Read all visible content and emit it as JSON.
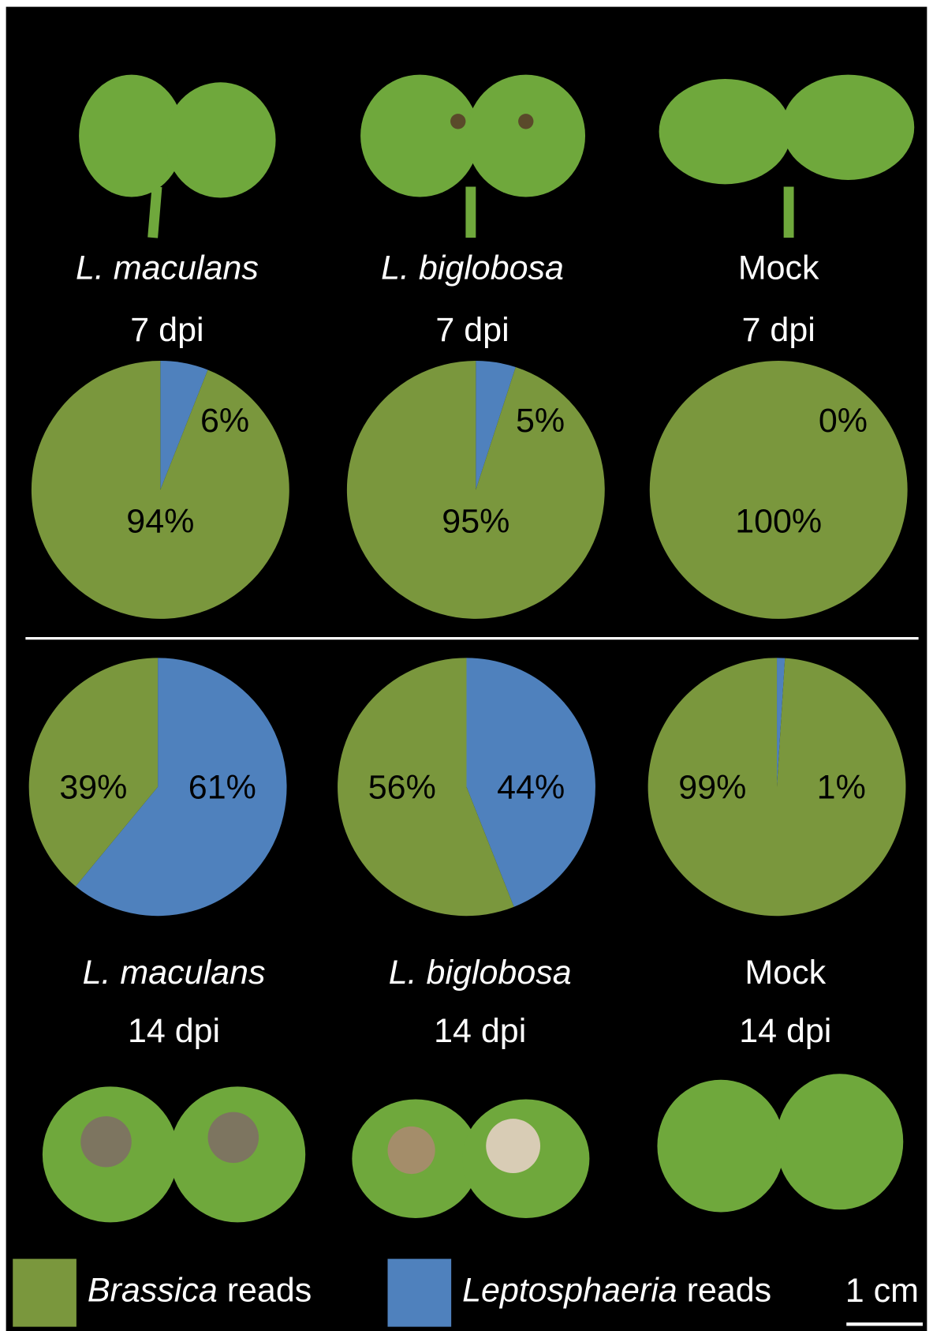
{
  "chart_data": [
    {
      "type": "pie",
      "title": "L. maculans",
      "subtitle": "7 dpi",
      "values": [
        94,
        6
      ],
      "value_labels": [
        "94%",
        "6%"
      ]
    },
    {
      "type": "pie",
      "title": "L. biglobosa",
      "subtitle": "7 dpi",
      "values": [
        95,
        5
      ],
      "value_labels": [
        "95%",
        "5%"
      ]
    },
    {
      "type": "pie",
      "title": "Mock",
      "subtitle": "7 dpi",
      "values": [
        100,
        0
      ],
      "value_labels": [
        "100%",
        "0%"
      ]
    },
    {
      "type": "pie",
      "title": "L. maculans",
      "subtitle": "14 dpi",
      "values": [
        39,
        61
      ],
      "value_labels": [
        "39%",
        "61%"
      ]
    },
    {
      "type": "pie",
      "title": "L. biglobosa",
      "subtitle": "14 dpi",
      "values": [
        56,
        44
      ],
      "value_labels": [
        "56%",
        "44%"
      ]
    },
    {
      "type": "pie",
      "title": "Mock",
      "subtitle": "14 dpi",
      "values": [
        99,
        1
      ],
      "value_labels": [
        "99%",
        "1%"
      ]
    }
  ],
  "legend": [
    {
      "name": "Brassica reads",
      "color": "#7a973d"
    },
    {
      "name": "Leptosphaeria reads",
      "color": "#4f81bd"
    }
  ],
  "scale_bar": "1 cm"
}
